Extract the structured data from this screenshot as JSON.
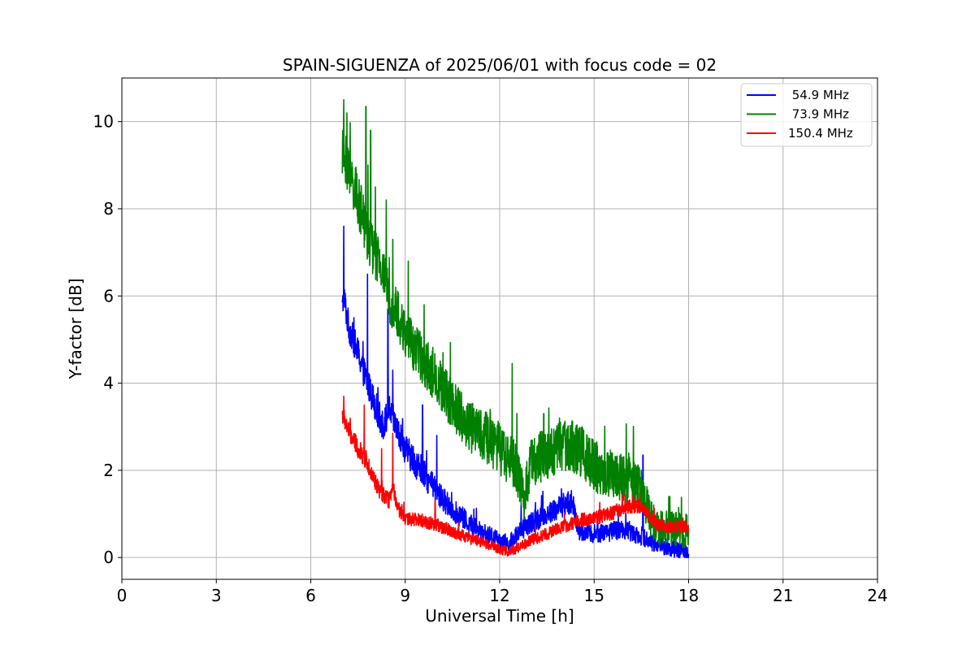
{
  "chart_data": {
    "type": "line",
    "title": "SPAIN-SIGUENZA of 2025/06/01 with focus code = 02",
    "xlabel": "Universal Time [h]",
    "ylabel": "Y-factor [dB]",
    "xlim": [
      0,
      24
    ],
    "ylim": [
      -0.5,
      11
    ],
    "xticks": [
      0,
      3,
      6,
      9,
      12,
      15,
      18,
      21,
      24
    ],
    "yticks": [
      0,
      2,
      4,
      6,
      8,
      10
    ],
    "grid": true,
    "legend_position": "top-right",
    "series": [
      {
        "name": " 54.9 MHz",
        "color": "#0000ff",
        "noise": 0.35,
        "spikes": [
          [
            7.05,
            7.6
          ],
          [
            7.8,
            6.5
          ],
          [
            8.45,
            5.7
          ],
          [
            8.6,
            4.3
          ],
          [
            9.55,
            3.5
          ],
          [
            10.0,
            2.8
          ],
          [
            16.55,
            2.35
          ]
        ],
        "x": [
          7.0,
          7.05,
          7.2,
          7.5,
          7.8,
          8.0,
          8.3,
          8.5,
          8.8,
          9.0,
          9.5,
          10.0,
          10.5,
          11.0,
          11.5,
          12.0,
          12.3,
          12.6,
          13.0,
          13.5,
          14.0,
          14.3,
          14.5,
          15.0,
          15.5,
          16.0,
          16.5,
          17.0,
          17.5,
          18.0
        ],
        "y": [
          5.7,
          6.0,
          5.3,
          4.7,
          4.0,
          3.6,
          3.0,
          3.4,
          2.8,
          2.5,
          2.0,
          1.5,
          1.1,
          0.8,
          0.55,
          0.4,
          0.3,
          0.6,
          0.8,
          1.0,
          1.2,
          1.3,
          0.6,
          0.55,
          0.6,
          0.65,
          0.5,
          0.3,
          0.2,
          0.1
        ]
      },
      {
        "name": " 73.9 MHz",
        "color": "#008000",
        "noise": 0.6,
        "spikes": [
          [
            7.05,
            10.5
          ],
          [
            7.15,
            10.2
          ],
          [
            7.75,
            10.35
          ],
          [
            7.9,
            9.8
          ],
          [
            8.05,
            8.5
          ],
          [
            8.4,
            8.2
          ],
          [
            8.6,
            7.3
          ],
          [
            9.1,
            6.8
          ],
          [
            9.6,
            5.8
          ],
          [
            10.2,
            4.7
          ],
          [
            11.7,
            3.4
          ],
          [
            12.4,
            4.45
          ],
          [
            12.55,
            3.3
          ],
          [
            13.4,
            3.3
          ],
          [
            13.9,
            3.2
          ],
          [
            14.5,
            2.9
          ],
          [
            16.1,
            2.4
          ],
          [
            16.5,
            2.0
          ],
          [
            17.4,
            1.4
          ]
        ],
        "x": [
          7.0,
          7.2,
          7.5,
          7.8,
          8.0,
          8.3,
          8.5,
          8.8,
          9.0,
          9.3,
          9.5,
          10.0,
          10.5,
          11.0,
          11.5,
          12.0,
          12.5,
          12.8,
          13.0,
          13.5,
          14.0,
          14.5,
          15.0,
          15.5,
          16.0,
          16.5,
          16.8,
          17.0,
          17.5,
          18.0
        ],
        "y": [
          9.3,
          8.9,
          8.2,
          7.4,
          7.0,
          6.5,
          6.0,
          5.5,
          5.1,
          4.8,
          4.6,
          4.1,
          3.5,
          3.0,
          2.8,
          2.5,
          2.1,
          1.3,
          2.2,
          2.4,
          2.6,
          2.5,
          2.1,
          1.9,
          1.8,
          1.6,
          0.9,
          0.7,
          0.65,
          0.6
        ]
      },
      {
        "name": "150.4 MHz",
        "color": "#ff0000",
        "noise": 0.22,
        "spikes": [
          [
            7.05,
            3.7
          ],
          [
            7.25,
            3.2
          ],
          [
            7.7,
            3.5
          ],
          [
            8.25,
            2.5
          ],
          [
            8.6,
            2.85
          ],
          [
            9.95,
            1.3
          ]
        ],
        "x": [
          7.0,
          7.2,
          7.5,
          7.8,
          8.0,
          8.2,
          8.5,
          8.6,
          8.8,
          9.0,
          9.5,
          10.0,
          10.5,
          11.0,
          11.5,
          12.0,
          12.3,
          12.5,
          13.0,
          13.5,
          14.0,
          14.5,
          15.0,
          15.5,
          16.0,
          16.5,
          17.0,
          17.5,
          18.0
        ],
        "y": [
          3.3,
          2.9,
          2.5,
          2.2,
          1.8,
          1.5,
          1.3,
          1.6,
          1.1,
          0.9,
          0.85,
          0.75,
          0.6,
          0.45,
          0.35,
          0.2,
          0.12,
          0.2,
          0.4,
          0.55,
          0.7,
          0.85,
          0.9,
          1.0,
          1.15,
          1.2,
          0.75,
          0.7,
          0.7
        ]
      }
    ]
  }
}
